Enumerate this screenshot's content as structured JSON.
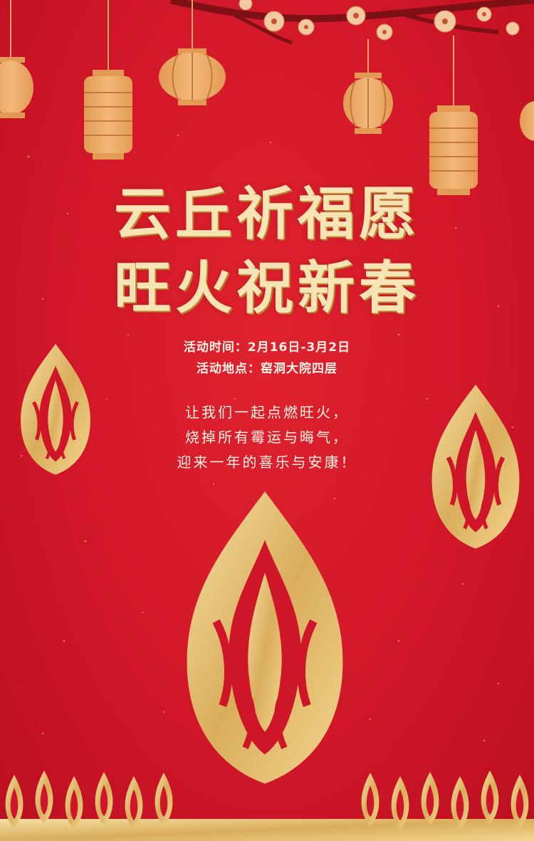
{
  "poster": {
    "title_line1": "云丘祈福愿",
    "title_line2": "旺火祝新春",
    "event_time_label": "活动时间：",
    "event_time_value": "2月16日-3月2日",
    "event_place_label": "活动地点：",
    "event_place_value": "窑洞大院四层",
    "slogan_lines": [
      "让我们一起点燃旺火，",
      "烧掉所有霉运与晦气，",
      "迎来一年的喜乐与安康！"
    ]
  },
  "colors": {
    "background": "#d4192b",
    "gold": "#e7c27a",
    "cream_text": "#f7e3b3",
    "branch": "#7e1016"
  },
  "decorations": {
    "lanterns": [
      "lantern-icon",
      "lantern-icon",
      "lantern-icon",
      "lantern-icon",
      "lantern-icon",
      "lantern-icon",
      "lantern-icon"
    ],
    "flames": [
      "flame-icon-left",
      "flame-icon-right",
      "flame-icon-center",
      "flame-border"
    ],
    "branch": "plum-blossom-branch"
  }
}
